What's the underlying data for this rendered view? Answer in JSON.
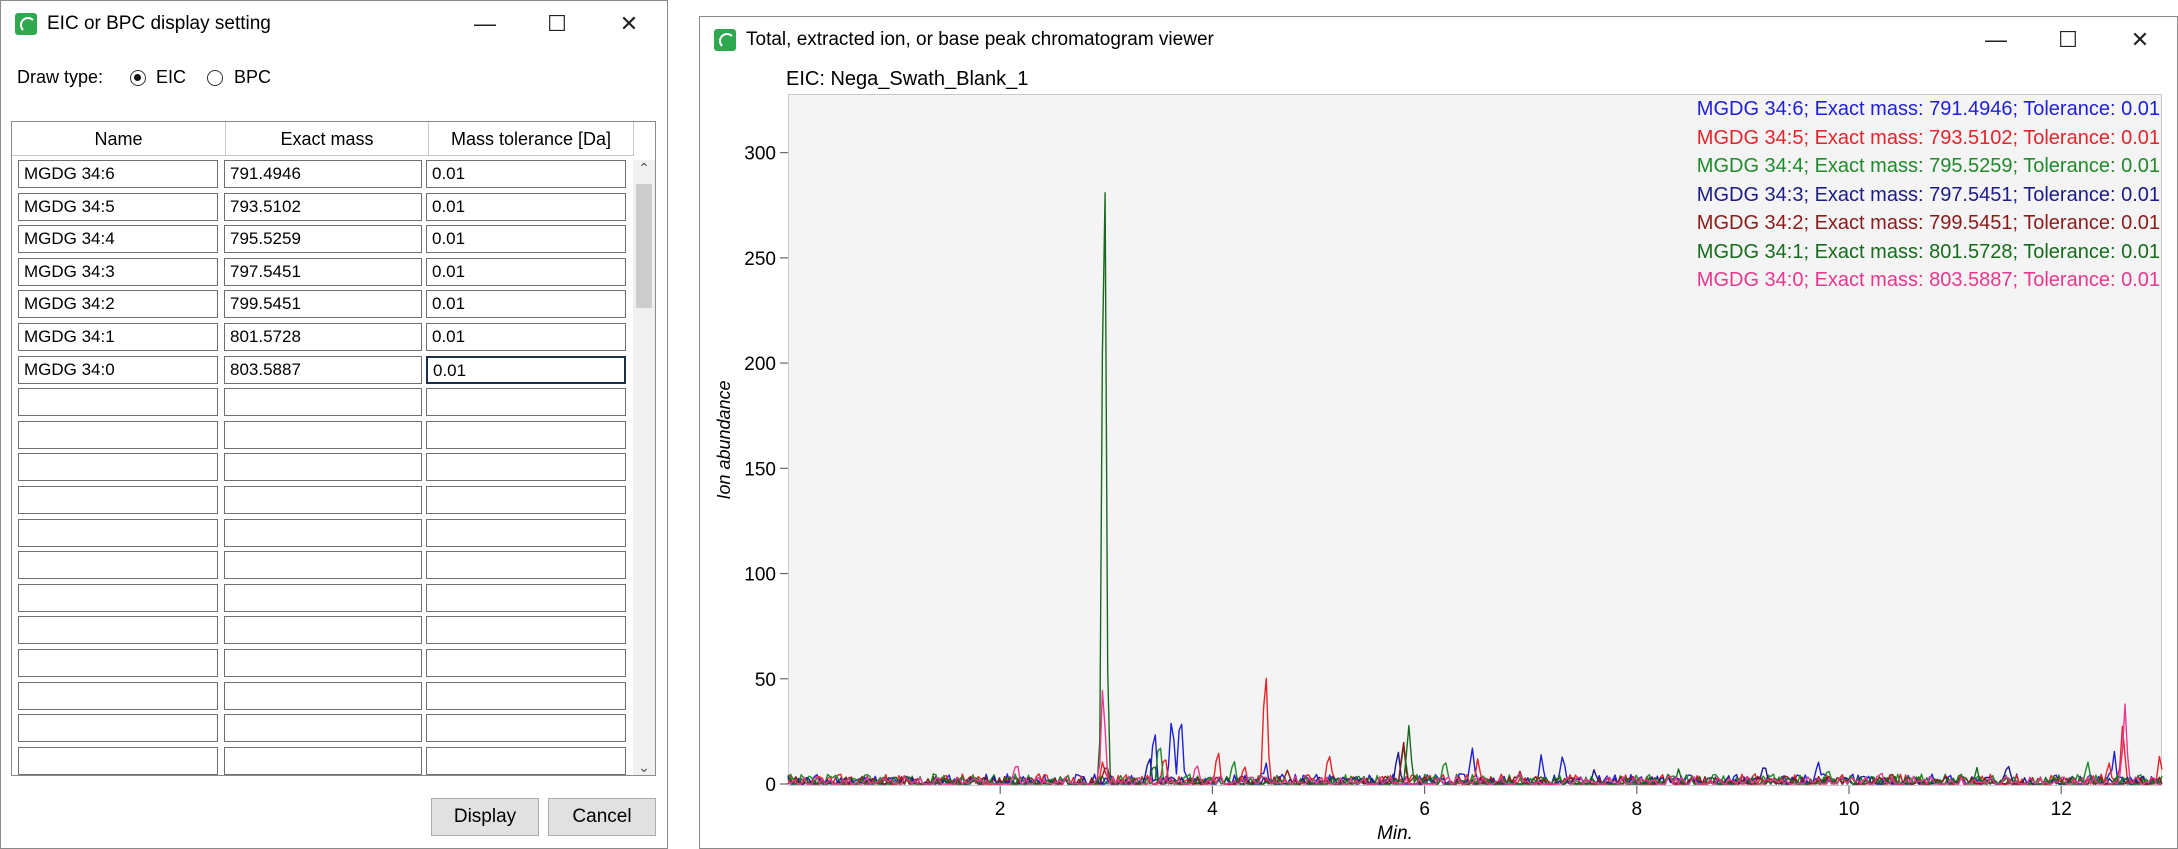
{
  "dialog": {
    "title": "EIC or BPC display setting",
    "draw_type_label": "Draw type:",
    "radio_options": [
      {
        "label": "EIC",
        "checked": true
      },
      {
        "label": "BPC",
        "checked": false
      }
    ],
    "columns": [
      "Name",
      "Exact mass",
      "Mass tolerance [Da]"
    ],
    "rows": [
      [
        "MGDG 34:6",
        "791.4946",
        "0.01"
      ],
      [
        "MGDG 34:5",
        "793.5102",
        "0.01"
      ],
      [
        "MGDG 34:4",
        "795.5259",
        "0.01"
      ],
      [
        "MGDG 34:3",
        "797.5451",
        "0.01"
      ],
      [
        "MGDG 34:2",
        "799.5451",
        "0.01"
      ],
      [
        "MGDG 34:1",
        "801.5728",
        "0.01"
      ],
      [
        "MGDG 34:0",
        "803.5887",
        "0.01"
      ]
    ],
    "empty_rows": 12,
    "display_button": "Display",
    "cancel_button": "Cancel",
    "scroll_up": "⌃",
    "scroll_down": "⌄"
  },
  "viewer": {
    "title": "Total, extracted ion, or base peak chromatogram viewer",
    "controls": {
      "minimize": "—",
      "maximize": "☐",
      "close": "✕"
    }
  },
  "chart_data": {
    "type": "line",
    "title": "EIC: Nega_Swath_Blank_1",
    "xlabel": "Min.",
    "ylabel": "Ion abundance",
    "xlim": [
      0,
      12.95
    ],
    "ylim": [
      0,
      325
    ],
    "xticks": [
      2,
      4,
      6,
      8,
      10,
      12
    ],
    "yticks": [
      0,
      50,
      100,
      150,
      200,
      250,
      300
    ],
    "grid": false,
    "legend_position": "top-right",
    "series": [
      {
        "name": "MGDG 34:6; Exact mass: 791.4946; Tolerance: 0.01",
        "color": "#1f1fd6",
        "seed": 11,
        "base": 4,
        "peaks": [
          [
            3.45,
            24
          ],
          [
            3.62,
            32
          ],
          [
            3.7,
            30
          ],
          [
            4.5,
            8
          ],
          [
            6.45,
            17
          ],
          [
            7.1,
            14
          ],
          [
            7.3,
            13
          ],
          [
            9.7,
            8
          ],
          [
            12.5,
            12
          ]
        ]
      },
      {
        "name": "MGDG 34:5; Exact mass: 793.5102; Tolerance: 0.01",
        "color": "#e3242b",
        "seed": 23,
        "base": 4,
        "peaks": [
          [
            2.97,
            10
          ],
          [
            3.55,
            13
          ],
          [
            4.05,
            14
          ],
          [
            4.5,
            55
          ],
          [
            4.3,
            9
          ],
          [
            5.1,
            12
          ],
          [
            6.5,
            8
          ],
          [
            12.45,
            10
          ],
          [
            12.58,
            28
          ],
          [
            12.93,
            13
          ]
        ]
      },
      {
        "name": "MGDG 34:4; Exact mass: 795.5259; Tolerance: 0.01",
        "color": "#1f8a2a",
        "seed": 37,
        "base": 4,
        "peaks": [
          [
            3.5,
            21
          ],
          [
            4.2,
            12
          ],
          [
            5.8,
            18
          ],
          [
            6.2,
            10
          ],
          [
            9.8,
            7
          ],
          [
            12.25,
            10
          ]
        ]
      },
      {
        "name": "MGDG 34:3; Exact mass: 797.5451; Tolerance: 0.01",
        "color": "#1b1b8a",
        "seed": 41,
        "base": 3,
        "peaks": [
          [
            3.4,
            12
          ],
          [
            5.75,
            14
          ],
          [
            7.6,
            7
          ],
          [
            9.2,
            6
          ],
          [
            11.5,
            6
          ]
        ]
      },
      {
        "name": "MGDG 34:2; Exact mass: 799.5451; Tolerance: 0.01",
        "color": "#8b1a1a",
        "seed": 53,
        "base": 3,
        "peaks": [
          [
            3.0,
            6
          ],
          [
            4.7,
            6
          ],
          [
            5.8,
            20
          ],
          [
            6.9,
            6
          ],
          [
            10.4,
            5
          ]
        ]
      },
      {
        "name": "MGDG 34:1; Exact mass: 801.5728; Tolerance: 0.01",
        "color": "#176b1c",
        "seed": 67,
        "base": 3,
        "peaks": [
          [
            2.98,
            315
          ],
          [
            3.45,
            10
          ],
          [
            5.85,
            28
          ],
          [
            8.4,
            5
          ],
          [
            11.2,
            5
          ]
        ]
      },
      {
        "name": "MGDG 34:0; Exact mass: 803.5887; Tolerance: 0.01",
        "color": "#e8378f",
        "seed": 79,
        "base": 3,
        "peaks": [
          [
            2.15,
            9
          ],
          [
            2.97,
            45
          ],
          [
            3.85,
            10
          ],
          [
            6.9,
            5
          ],
          [
            10.3,
            6
          ],
          [
            12.6,
            38
          ]
        ]
      }
    ]
  }
}
